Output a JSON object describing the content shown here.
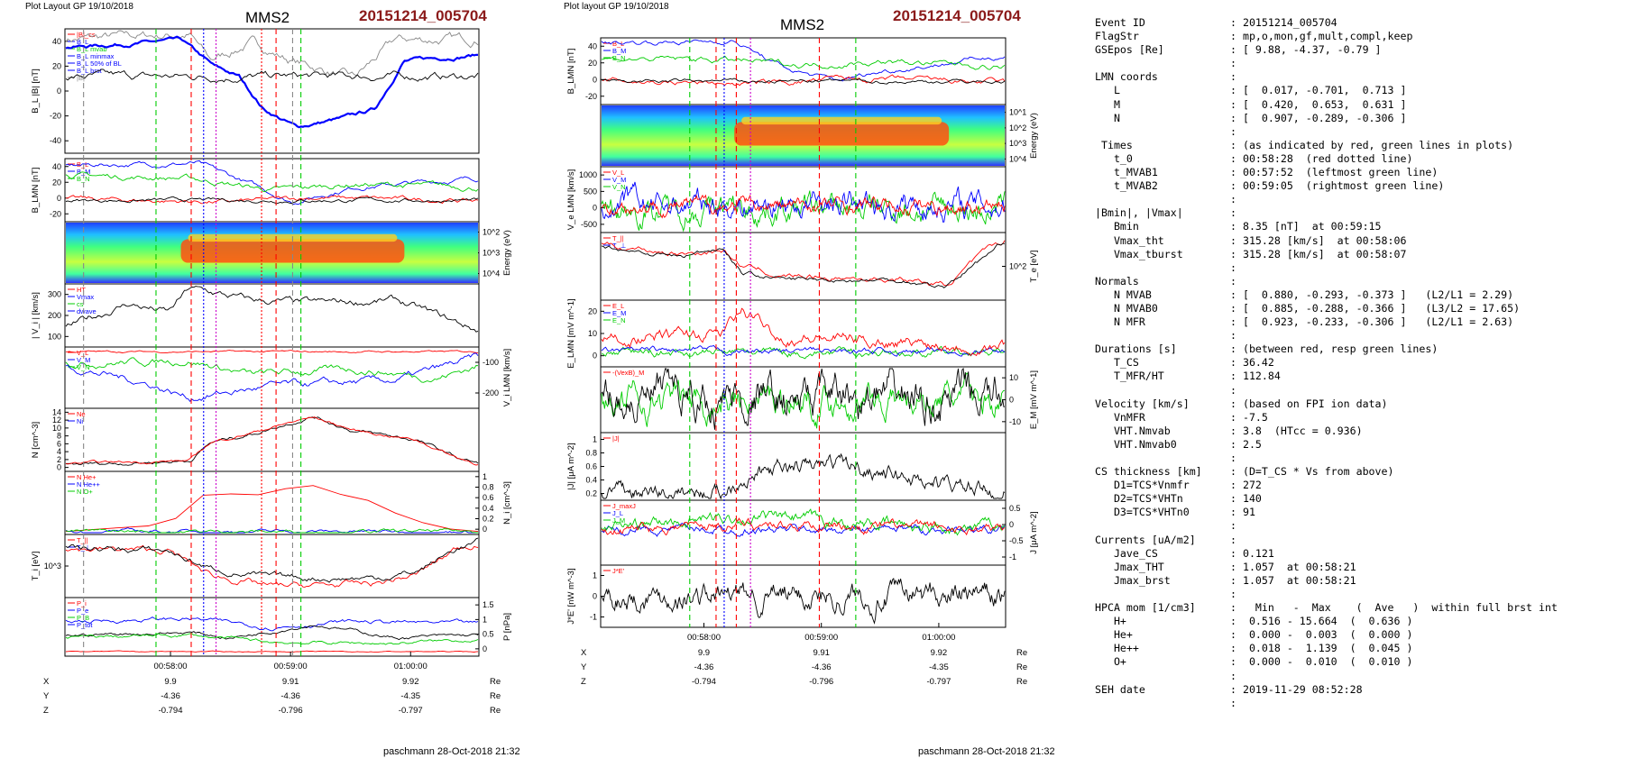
{
  "left": {
    "header": "Plot Layout GP 19/10/2018",
    "title": "MMS2",
    "event": "20151214_005704",
    "footer": "paschmann 28-Oct-2018 21:32",
    "panels": [
      {
        "ylabel": "B_L |B| [nT]",
        "yside": "left",
        "ticks": [
          -40,
          -20,
          0,
          20,
          40
        ],
        "legend": [
          "|B|_cs",
          "B_L",
          "B_L mvab",
          "B_L minmax",
          "B_L 50% of BL",
          "B_L brst",
          "|B|"
        ]
      },
      {
        "ylabel": "B_LMN [nT]",
        "yside": "left",
        "ticks": [
          -20,
          0,
          20,
          40
        ],
        "legend": [
          "B_L",
          "B_M",
          "B_N"
        ]
      },
      {
        "ylabel": "Energy (eV)",
        "yside": "right",
        "ticks": [
          "10^4",
          "10^3",
          "10^2"
        ]
      },
      {
        "ylabel": "| V_i | [km/s]",
        "yside": "left",
        "ticks": [
          100,
          200,
          300
        ],
        "legend": [
          "HT",
          "Vmax",
          "cs",
          "dwave"
        ]
      },
      {
        "ylabel": "V_i LMN [km/s]",
        "yside": "right",
        "ticks": [
          -200,
          -100
        ],
        "legend": [
          "V_L",
          "V_M",
          "V_N"
        ]
      },
      {
        "ylabel": "N [cm^-3]",
        "yside": "left",
        "ticks": [
          0,
          2,
          4,
          6,
          8,
          10,
          12,
          14
        ],
        "legend": [
          "Ne",
          "Ni"
        ]
      },
      {
        "ylabel": "N_i [cm^-3]",
        "yside": "right",
        "ticks": [
          0.0,
          0.2,
          0.4,
          0.6,
          0.8,
          1.0
        ],
        "legend": [
          "N  He+",
          "N  He++",
          "N  O+"
        ]
      },
      {
        "ylabel": "T_i [eV]",
        "yside": "left",
        "ticks": [
          "10^3"
        ],
        "legend": [
          "T_||",
          "T_⊥"
        ]
      },
      {
        "ylabel": "P [nPa]",
        "yside": "right",
        "ticks": [
          0.0,
          0.5,
          1.0,
          1.5
        ],
        "legend": [
          "P_i",
          "P_e",
          "P_B",
          "P_tot"
        ]
      }
    ],
    "time_ticks": [
      "00:58:00",
      "00:59:00",
      "01:00:00"
    ],
    "coords": [
      {
        "name": "X",
        "values": [
          "9.9",
          "9.91",
          "9.92"
        ],
        "unit": "Re"
      },
      {
        "name": "Y",
        "values": [
          "-4.36",
          "-4.36",
          "-4.35"
        ],
        "unit": "Re"
      },
      {
        "name": "Z",
        "values": [
          "-0.794",
          "-0.796",
          "-0.797"
        ],
        "unit": "Re"
      }
    ]
  },
  "mid": {
    "header": "Plot layout GP 19/10/2018",
    "title": "MMS2",
    "event": "20151214_005704",
    "footer": "paschmann 28-Oct-2018 21:32",
    "panels": [
      {
        "ylabel": "B_LMN [nT]",
        "yside": "left",
        "ticks": [
          -20,
          0,
          20,
          40
        ],
        "legend": [
          "B_L",
          "B_M",
          "B_N"
        ]
      },
      {
        "ylabel": "Energy (eV)",
        "yside": "right",
        "ticks": [
          "10^4",
          "10^3",
          "10^2",
          "10^1"
        ]
      },
      {
        "ylabel": "V_e LMN [km/s]",
        "yside": "left",
        "ticks": [
          -500,
          0,
          500,
          1000
        ],
        "legend": [
          "V_L",
          "V_M",
          "V_N"
        ]
      },
      {
        "ylabel": "T_e [eV]",
        "yside": "right",
        "ticks": [
          "10^2"
        ],
        "legend": [
          "T_||",
          "T_⊥"
        ]
      },
      {
        "ylabel": "E_LMN [mV m^-1]",
        "yside": "left",
        "ticks": [
          0,
          10,
          20
        ],
        "legend": [
          "E_L",
          "E_M",
          "E_N"
        ]
      },
      {
        "ylabel": "E_M [mV m^-1]",
        "yside": "right",
        "ticks": [
          -10,
          0,
          10
        ],
        "legend": [
          "-(VexB)_M"
        ]
      },
      {
        "ylabel": "|J| [μA m^-2]",
        "yside": "left",
        "ticks": [
          0.2,
          0.4,
          0.6,
          0.8,
          1.0
        ],
        "legend": [
          "|J|"
        ]
      },
      {
        "ylabel": "J [μA m^-2]",
        "yside": "right",
        "ticks": [
          -1.0,
          -0.5,
          0.0,
          0.5
        ],
        "legend": [
          "J_maxJ",
          "J_L",
          "J_M"
        ]
      },
      {
        "ylabel": "J*E' [nW m^-3]",
        "yside": "left",
        "ticks": [
          -1,
          0,
          1
        ],
        "legend": [
          "J*E'"
        ]
      }
    ],
    "time_ticks": [
      "00:58:00",
      "00:59:00",
      "01:00:00"
    ],
    "coords": [
      {
        "name": "X",
        "values": [
          "9.9",
          "9.91",
          "9.92"
        ],
        "unit": "Re"
      },
      {
        "name": "Y",
        "values": [
          "-4.36",
          "-4.36",
          "-4.35"
        ],
        "unit": "Re"
      },
      {
        "name": "Z",
        "values": [
          "-0.794",
          "-0.796",
          "-0.797"
        ],
        "unit": "Re"
      }
    ]
  },
  "info_lines": [
    [
      "Event ID",
      ": 20151214_005704"
    ],
    [
      "FlagStr",
      ": mp,o,mon,gf,mult,compl,keep"
    ],
    [
      "GSEpos [Re]",
      ": [ 9.88, -4.37, -0.79 ]"
    ],
    [
      "",
      ":"
    ],
    [
      "LMN coords",
      ":"
    ],
    [
      "   L",
      ": [  0.017, -0.701,  0.713 ]"
    ],
    [
      "   M",
      ": [  0.420,  0.653,  0.631 ]"
    ],
    [
      "   N",
      ": [  0.907, -0.289, -0.306 ]"
    ],
    [
      "",
      ":"
    ],
    [
      " Times",
      ": (as indicated by red, green lines in plots)"
    ],
    [
      "   t_0",
      ": 00:58:28  (red dotted line)"
    ],
    [
      "   t_MVAB1",
      ": 00:57:52  (leftmost green line)"
    ],
    [
      "   t_MVAB2",
      ": 00:59:05  (rightmost green line)"
    ],
    [
      "",
      ":"
    ],
    [
      "|Bmin|, |Vmax|",
      ":"
    ],
    [
      "   Bmin",
      ": 8.35 [nT]  at 00:59:15"
    ],
    [
      "   Vmax_tht",
      ": 315.28 [km/s]  at 00:58:06"
    ],
    [
      "   Vmax_tburst",
      ": 315.28 [km/s]  at 00:58:07"
    ],
    [
      "",
      ":"
    ],
    [
      "Normals",
      ":"
    ],
    [
      "   N MVAB",
      ": [  0.880, -0.293, -0.373 ]   (L2/L1 = 2.29)"
    ],
    [
      "   N MVAB0",
      ": [  0.885, -0.288, -0.366 ]   (L3/L2 = 17.65)"
    ],
    [
      "   N MFR",
      ": [  0.923, -0.233, -0.306 ]   (L2/L1 = 2.63)"
    ],
    [
      "",
      ":"
    ],
    [
      "Durations [s]",
      ": (between red, resp green lines)"
    ],
    [
      "   T_CS",
      ": 36.42"
    ],
    [
      "   T_MFR/HT",
      ": 112.84"
    ],
    [
      "",
      ":"
    ],
    [
      "Velocity [km/s]",
      ": (based on FPI ion data)"
    ],
    [
      "   VnMFR",
      ": -7.5"
    ],
    [
      "   VHT.Nmvab",
      ": 3.8  (HTcc = 0.936)"
    ],
    [
      "   VHT.Nmvab0",
      ": 2.5"
    ],
    [
      "",
      ":"
    ],
    [
      "CS thickness [km]",
      ": (D=T_CS * Vs from above)"
    ],
    [
      "   D1=TCS*Vnmfr",
      ": 272"
    ],
    [
      "   D2=TCS*VHTn",
      ": 140"
    ],
    [
      "   D3=TCS*VHTn0",
      ": 91"
    ],
    [
      "",
      ":"
    ],
    [
      "Currents [uA/m2]",
      ":"
    ],
    [
      "   Jave_CS",
      ": 0.121"
    ],
    [
      "   Jmax_THT",
      ": 1.057  at 00:58:21"
    ],
    [
      "   Jmax_brst",
      ": 1.057  at 00:58:21"
    ],
    [
      "",
      ":"
    ],
    [
      "HPCA mom [1/cm3]",
      ":   Min   -  Max    (  Ave   )  within full brst int"
    ],
    [
      "   H+",
      ":  0.516 - 15.664  (  0.636 )"
    ],
    [
      "   He+",
      ":  0.000 -  0.003  (  0.000 )"
    ],
    [
      "   He++",
      ":  0.018 -  1.139  (  0.045 )"
    ],
    [
      "   O+",
      ":  0.000 -  0.010  (  0.010 )"
    ],
    [
      "",
      ":"
    ],
    [
      "SEH date",
      ": 2019-11-29 08:52:28"
    ],
    [
      "",
      ":"
    ]
  ],
  "colors": {
    "red": "#ff0000",
    "green": "#00cc00",
    "blue": "#0000ff",
    "magenta": "#cc00cc",
    "black": "#000000",
    "gray": "#888888",
    "title_red": "#8b1a1a"
  }
}
